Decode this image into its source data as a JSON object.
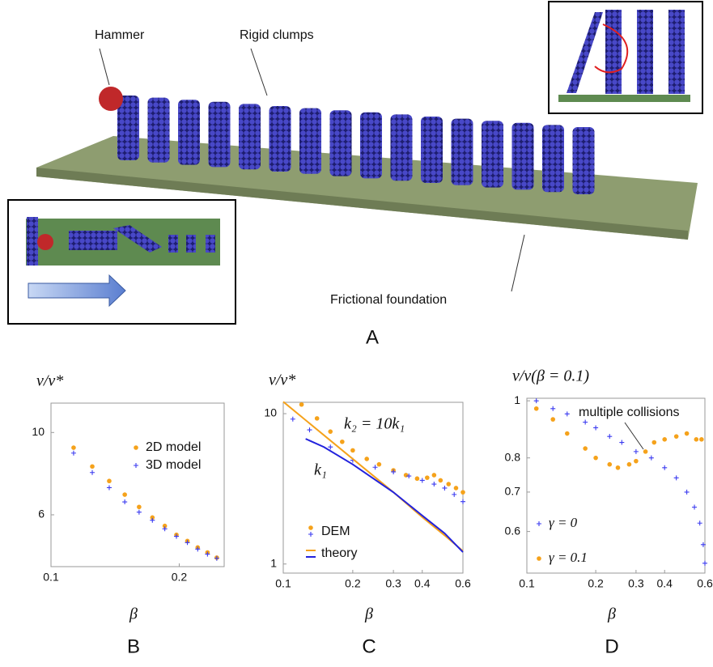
{
  "illustration": {
    "labels": [
      "Hammer",
      "Rigid clumps",
      "Frictional foundation"
    ],
    "panel": "A"
  },
  "chart_data": [
    {
      "type": "scatter",
      "panel": "B",
      "ylabel": "v/v*",
      "xlabel": "β",
      "xscale": "log",
      "yscale": "log",
      "xlim": [
        0.1,
        0.255
      ],
      "ylim": [
        4.35,
        12
      ],
      "xticks": [
        0.1,
        0.2
      ],
      "yticks": [
        6,
        10
      ],
      "legend": "upper right",
      "series": [
        {
          "name": "2D model",
          "color": "#f5a21b",
          "marker": "dot",
          "x": [
            0.113,
            0.125,
            0.137,
            0.149,
            0.161,
            0.173,
            0.185,
            0.197,
            0.209,
            0.221,
            0.233,
            0.245
          ],
          "values": [
            9.1,
            8.1,
            7.4,
            6.8,
            6.3,
            5.9,
            5.6,
            5.3,
            5.1,
            4.9,
            4.75,
            4.6
          ]
        },
        {
          "name": "3D model",
          "color": "#3a3af0",
          "marker": "plus",
          "x": [
            0.113,
            0.125,
            0.137,
            0.149,
            0.161,
            0.173,
            0.185,
            0.197,
            0.209,
            0.221,
            0.233,
            0.245
          ],
          "values": [
            8.8,
            7.8,
            7.1,
            6.5,
            6.1,
            5.8,
            5.5,
            5.25,
            5.05,
            4.85,
            4.7,
            4.58
          ]
        }
      ]
    },
    {
      "type": "scatter",
      "panel": "C",
      "ylabel": "v/v*",
      "xlabel": "β",
      "xscale": "log",
      "yscale": "log",
      "xlim": [
        0.1,
        0.6
      ],
      "ylim": [
        0.87,
        11.9
      ],
      "xticks": [
        0.1,
        0.2,
        0.3,
        0.4,
        0.6
      ],
      "yticks": [
        1,
        10
      ],
      "legend_entries": [
        "DEM",
        "theory"
      ],
      "annotations": [
        "k₂ = 10k₁",
        "k₁"
      ],
      "series": [
        {
          "color": "#f5a21b",
          "marker": "dot",
          "x": [
            0.12,
            0.14,
            0.16,
            0.18,
            0.2,
            0.23,
            0.26,
            0.3,
            0.34,
            0.38,
            0.42,
            0.45,
            0.48,
            0.52,
            0.56,
            0.6
          ],
          "values": [
            11.5,
            9.3,
            7.6,
            6.5,
            5.7,
            5.0,
            4.6,
            4.2,
            3.9,
            3.7,
            3.75,
            3.9,
            3.6,
            3.4,
            3.2,
            3.0
          ]
        },
        {
          "color": "#3a3af0",
          "marker": "plus",
          "x": [
            0.11,
            0.13,
            0.16,
            0.2,
            0.25,
            0.3,
            0.35,
            0.4,
            0.45,
            0.5,
            0.55,
            0.6
          ],
          "values": [
            9.2,
            7.8,
            6.0,
            4.9,
            4.4,
            4.1,
            3.85,
            3.6,
            3.4,
            3.2,
            2.9,
            2.6
          ]
        },
        {
          "color": "#f5a21b",
          "marker": "line",
          "x": [
            0.1,
            0.2,
            0.3,
            0.4,
            0.5,
            0.6
          ],
          "values": [
            12,
            5.0,
            3.0,
            2.05,
            1.55,
            1.22
          ]
        },
        {
          "color": "#2222dd",
          "marker": "line",
          "x": [
            0.125,
            0.15,
            0.2,
            0.3,
            0.4,
            0.5,
            0.6
          ],
          "values": [
            6.8,
            6.0,
            4.6,
            3.0,
            2.1,
            1.6,
            1.2
          ]
        }
      ]
    },
    {
      "type": "scatter",
      "panel": "D",
      "ylabel": "v/v(β = 0.1)",
      "xlabel": "β",
      "xscale": "log",
      "yscale": "log",
      "xlim": [
        0.1,
        0.6
      ],
      "ylim": [
        0.51,
        1.01
      ],
      "xticks": [
        0.1,
        0.2,
        0.3,
        0.4,
        0.6
      ],
      "yticks": [
        0.6,
        0.7,
        0.8,
        1
      ],
      "annotations": [
        "multiple collisions"
      ],
      "series": [
        {
          "name": "γ = 0",
          "color": "#3a3af0",
          "marker": "plus",
          "x": [
            0.11,
            0.13,
            0.15,
            0.18,
            0.2,
            0.23,
            0.26,
            0.3,
            0.35,
            0.4,
            0.45,
            0.5,
            0.54,
            0.57,
            0.59,
            0.6
          ],
          "values": [
            1.0,
            0.97,
            0.95,
            0.92,
            0.9,
            0.87,
            0.85,
            0.82,
            0.8,
            0.77,
            0.74,
            0.7,
            0.66,
            0.62,
            0.57,
            0.53
          ]
        },
        {
          "name": "γ = 0.1",
          "color": "#f5a21b",
          "marker": "dot",
          "x": [
            0.11,
            0.13,
            0.15,
            0.18,
            0.2,
            0.23,
            0.25,
            0.28,
            0.3,
            0.33,
            0.36,
            0.4,
            0.45,
            0.5,
            0.55,
            0.58
          ],
          "values": [
            0.97,
            0.93,
            0.88,
            0.83,
            0.8,
            0.78,
            0.77,
            0.78,
            0.79,
            0.82,
            0.85,
            0.86,
            0.87,
            0.88,
            0.86,
            0.86
          ]
        }
      ]
    }
  ]
}
